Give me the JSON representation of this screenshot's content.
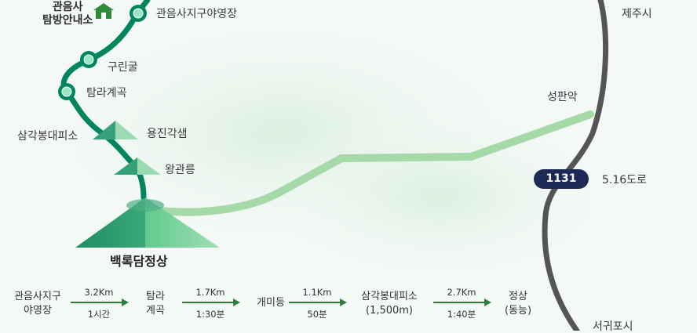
{
  "colors": {
    "trail": "#00855e",
    "light_trail": "#a6d9a8",
    "road": "#555555",
    "route_badge": "#1c2a55",
    "arrow": "#2f7d3c"
  },
  "labels": {
    "visitor_center": "관음사\n탐방안내소",
    "campground": "관음사지구야영장",
    "jeju_si": "제주시",
    "gurin_cave": "구린굴",
    "tamra_valley": "탐라계곡",
    "seongpan_ak": "성판악",
    "samgak_shelter": "삼각봉대피소",
    "yongjin_shelter": "용진각샘",
    "wanggwan": "왕관릉",
    "road_name": "5.16도로",
    "summit": "백록담정상",
    "seogwipo": "서귀포시"
  },
  "icons": {
    "visitor_center": "house-icon",
    "waypoint": "waypoint-marker-icon",
    "peak": "mountain-icon"
  },
  "road_badge": "1131",
  "route_summary": {
    "stops": [
      "관음사지구\n야영장",
      "탐라\n계곡",
      "개미등",
      "삼각봉대피소\n(1,500m)",
      "정상\n(동능)"
    ],
    "segments": [
      {
        "distance": "3.2Km",
        "time": "1시간"
      },
      {
        "distance": "1.7Km",
        "time": "1:30분"
      },
      {
        "distance": "1.1Km",
        "time": "50분"
      },
      {
        "distance": "2.7Km",
        "time": "1:40분"
      }
    ]
  }
}
